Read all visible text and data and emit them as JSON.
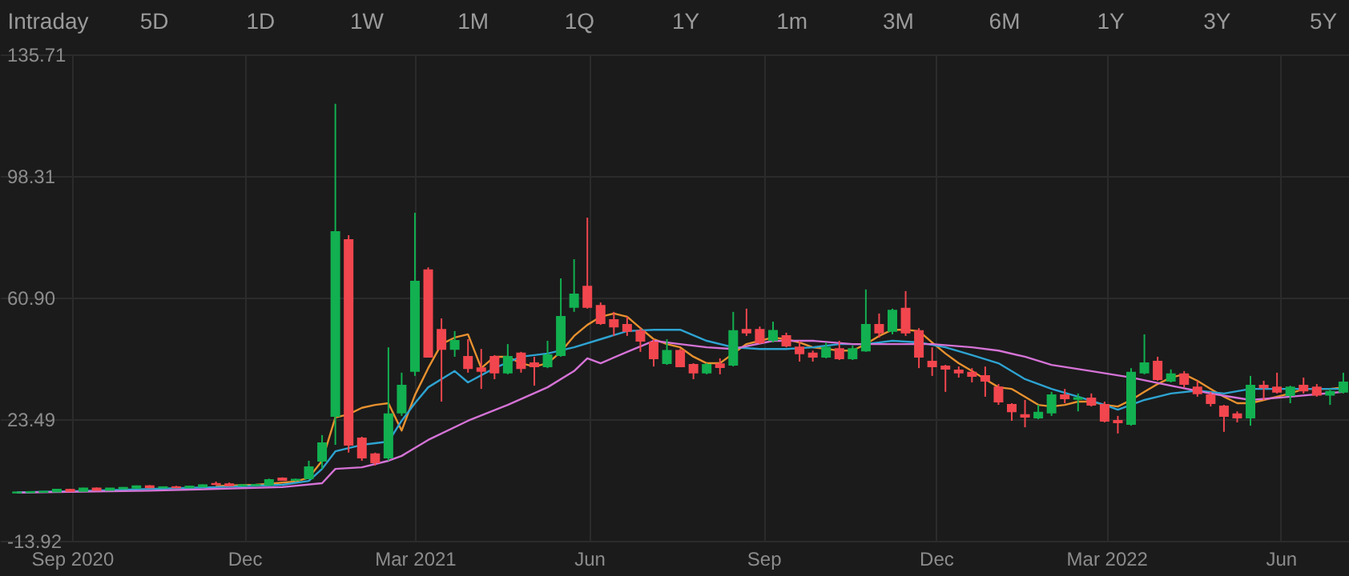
{
  "chart_data": {
    "type": "candlestick",
    "annotations": [
      "Intraday",
      "5D",
      "1D",
      "1W",
      "1M",
      "1Q",
      "1Y",
      "1m",
      "3M",
      "6M",
      "1Y",
      "3Y",
      "5Y"
    ],
    "x": [
      "2020-08-03",
      "2020-08-10",
      "2020-08-17",
      "2020-08-24",
      "2020-08-31",
      "2020-09-07",
      "2020-09-14",
      "2020-09-21",
      "2020-09-28",
      "2020-10-05",
      "2020-10-12",
      "2020-10-19",
      "2020-10-26",
      "2020-11-02",
      "2020-11-09",
      "2020-11-16",
      "2020-11-23",
      "2020-11-30",
      "2020-12-07",
      "2020-12-14",
      "2020-12-21",
      "2020-12-28",
      "2021-01-04",
      "2021-01-11",
      "2021-01-18",
      "2021-01-25",
      "2021-02-01",
      "2021-02-08",
      "2021-02-15",
      "2021-02-22",
      "2021-03-01",
      "2021-03-08",
      "2021-03-15",
      "2021-03-22",
      "2021-03-29",
      "2021-04-05",
      "2021-04-12",
      "2021-04-19",
      "2021-04-26",
      "2021-05-03",
      "2021-05-10",
      "2021-05-17",
      "2021-05-24",
      "2021-05-31",
      "2021-06-07",
      "2021-06-14",
      "2021-06-21",
      "2021-06-28",
      "2021-07-05",
      "2021-07-12",
      "2021-07-19",
      "2021-07-26",
      "2021-08-02",
      "2021-08-09",
      "2021-08-16",
      "2021-08-23",
      "2021-08-30",
      "2021-09-06",
      "2021-09-13",
      "2021-09-20",
      "2021-09-27",
      "2021-10-04",
      "2021-10-11",
      "2021-10-18",
      "2021-10-25",
      "2021-11-01",
      "2021-11-08",
      "2021-11-15",
      "2021-11-22",
      "2021-11-29",
      "2021-12-06",
      "2021-12-13",
      "2021-12-20",
      "2021-12-27",
      "2022-01-03",
      "2022-01-10",
      "2022-01-17",
      "2022-01-24",
      "2022-01-31",
      "2022-02-07",
      "2022-02-14",
      "2022-02-21",
      "2022-02-28",
      "2022-03-07",
      "2022-03-14",
      "2022-03-21",
      "2022-03-28",
      "2022-04-04",
      "2022-04-11",
      "2022-04-18",
      "2022-04-25",
      "2022-05-02",
      "2022-05-09",
      "2022-05-16",
      "2022-05-23",
      "2022-05-30",
      "2022-06-06",
      "2022-06-13",
      "2022-06-20",
      "2022-06-27",
      "2022-07-04"
    ],
    "ohlc": [
      [
        0.9,
        1.1,
        0.8,
        1.0
      ],
      [
        1.0,
        1.2,
        0.9,
        1.1
      ],
      [
        1.1,
        1.3,
        1.0,
        1.2
      ],
      [
        1.2,
        2.0,
        1.1,
        1.8
      ],
      [
        1.8,
        2.1,
        1.3,
        1.4
      ],
      [
        1.4,
        2.4,
        1.3,
        2.2
      ],
      [
        2.2,
        2.5,
        1.6,
        1.7
      ],
      [
        1.7,
        2.3,
        1.6,
        2.2
      ],
      [
        2.2,
        2.6,
        1.9,
        2.4
      ],
      [
        2.4,
        3.1,
        2.2,
        2.9
      ],
      [
        2.9,
        3.2,
        2.3,
        2.5
      ],
      [
        2.5,
        2.8,
        2.2,
        2.6
      ],
      [
        2.6,
        3.0,
        2.3,
        2.5
      ],
      [
        2.5,
        3.0,
        2.3,
        2.8
      ],
      [
        2.8,
        3.4,
        2.6,
        3.2
      ],
      [
        3.6,
        4.3,
        3.2,
        3.5
      ],
      [
        3.5,
        4.0,
        2.9,
        3.1
      ],
      [
        3.1,
        3.5,
        2.8,
        3.2
      ],
      [
        3.2,
        3.6,
        3.0,
        3.3
      ],
      [
        3.3,
        5.2,
        3.2,
        4.8
      ],
      [
        5.3,
        5.6,
        4.6,
        4.8
      ],
      [
        4.8,
        5.2,
        4.4,
        4.9
      ],
      [
        5.3,
        10.7,
        5.2,
        8.7
      ],
      [
        10.7,
        18.6,
        8.2,
        16.1
      ],
      [
        24.5,
        120.5,
        15.6,
        81.1
      ],
      [
        78.6,
        80.1,
        13.2,
        15.6
      ],
      [
        17.6,
        18.1,
        10.7,
        11.7
      ],
      [
        12.7,
        13.2,
        9.2,
        10.2
      ],
      [
        11.7,
        45.6,
        10.7,
        25.0
      ],
      [
        25.5,
        37.8,
        24.5,
        33.8
      ],
      [
        38.3,
        87.0,
        36.8,
        65.8
      ],
      [
        69.3,
        70.2,
        42.7,
        42.7
      ],
      [
        51.0,
        54.5,
        28.9,
        45.1
      ],
      [
        45.1,
        50.6,
        42.7,
        47.6
      ],
      [
        42.7,
        48.1,
        37.8,
        39.2
      ],
      [
        39.2,
        45.1,
        32.8,
        38.3
      ],
      [
        42.7,
        43.2,
        35.8,
        37.8
      ],
      [
        37.8,
        46.6,
        37.3,
        42.7
      ],
      [
        43.7,
        44.2,
        37.8,
        39.2
      ],
      [
        40.7,
        42.7,
        33.8,
        39.7
      ],
      [
        39.7,
        47.6,
        39.2,
        43.2
      ],
      [
        43.2,
        66.8,
        42.7,
        55.0
      ],
      [
        58.0,
        72.7,
        56.5,
        61.9
      ],
      [
        64.3,
        85.5,
        57.5,
        58.0
      ],
      [
        58.4,
        59.4,
        52.5,
        53.0
      ],
      [
        54.0,
        56.5,
        49.1,
        52.0
      ],
      [
        52.5,
        55.0,
        49.1,
        50.6
      ],
      [
        50.6,
        51.5,
        44.2,
        47.6
      ],
      [
        47.1,
        48.1,
        39.7,
        42.2
      ],
      [
        40.7,
        48.1,
        40.2,
        44.5
      ],
      [
        44.5,
        45.1,
        39.7,
        39.7
      ],
      [
        40.2,
        40.7,
        35.8,
        37.8
      ],
      [
        37.8,
        40.7,
        37.3,
        40.2
      ],
      [
        40.4,
        42.2,
        37.3,
        39.5
      ],
      [
        40.2,
        56.5,
        39.7,
        50.6
      ],
      [
        51.0,
        57.5,
        49.1,
        50.1
      ],
      [
        51.0,
        52.0,
        46.6,
        47.1
      ],
      [
        47.8,
        53.5,
        47.1,
        50.7
      ],
      [
        49.1,
        50.1,
        45.6,
        46.1
      ],
      [
        45.6,
        47.6,
        41.2,
        43.7
      ],
      [
        43.7,
        44.6,
        41.2,
        42.7
      ],
      [
        42.7,
        47.1,
        42.2,
        45.5
      ],
      [
        45.1,
        47.6,
        41.7,
        42.2
      ],
      [
        42.2,
        46.1,
        41.7,
        45.1
      ],
      [
        44.6,
        63.4,
        44.2,
        52.5
      ],
      [
        52.5,
        56.0,
        48.6,
        50.1
      ],
      [
        50.6,
        57.5,
        49.6,
        56.9
      ],
      [
        57.5,
        62.9,
        49.1,
        50.1
      ],
      [
        50.6,
        51.5,
        39.2,
        42.7
      ],
      [
        41.2,
        45.6,
        36.8,
        39.7
      ],
      [
        39.7,
        40.2,
        31.9,
        39.0
      ],
      [
        38.5,
        39.7,
        36.3,
        37.8
      ],
      [
        37.8,
        39.2,
        34.8,
        36.8
      ],
      [
        36.8,
        39.7,
        30.4,
        35.3
      ],
      [
        33.3,
        34.3,
        27.9,
        28.9
      ],
      [
        27.9,
        28.4,
        23.0,
        25.9
      ],
      [
        24.8,
        29.4,
        21.0,
        24.2
      ],
      [
        24.0,
        27.9,
        23.5,
        25.5
      ],
      [
        25.5,
        31.9,
        24.5,
        30.9
      ],
      [
        30.9,
        32.8,
        28.4,
        29.9
      ],
      [
        29.7,
        31.4,
        25.9,
        30.0
      ],
      [
        29.9,
        31.4,
        27.4,
        27.9
      ],
      [
        27.9,
        28.9,
        22.5,
        23.0
      ],
      [
        23.0,
        24.5,
        19.1,
        22.5
      ],
      [
        22.0,
        39.2,
        21.5,
        37.8
      ],
      [
        37.8,
        49.6,
        37.3,
        40.7
      ],
      [
        41.2,
        42.7,
        35.3,
        35.8
      ],
      [
        35.3,
        38.8,
        34.8,
        37.3
      ],
      [
        37.3,
        38.3,
        33.3,
        34.3
      ],
      [
        33.3,
        35.3,
        30.4,
        31.4
      ],
      [
        30.9,
        31.9,
        27.4,
        28.4
      ],
      [
        27.4,
        27.9,
        19.6,
        24.5
      ],
      [
        25.0,
        25.9,
        22.5,
        24.0
      ],
      [
        24.0,
        36.8,
        21.5,
        33.8
      ],
      [
        33.8,
        35.3,
        29.4,
        33.3
      ],
      [
        33.3,
        37.8,
        31.4,
        31.9
      ],
      [
        30.9,
        33.8,
        28.4,
        33.3
      ],
      [
        33.8,
        36.3,
        31.4,
        32.3
      ],
      [
        33.3,
        34.3,
        30.4,
        31.0
      ],
      [
        31.0,
        32.8,
        27.9,
        31.9
      ],
      [
        31.9,
        37.8,
        31.4,
        34.8
      ]
    ],
    "colors": [
      "#12b050",
      "#12b050",
      "#12b050",
      "#12b050",
      "#f2464e",
      "#12b050",
      "#f2464e",
      "#12b050",
      "#12b050",
      "#12b050",
      "#f2464e",
      "#12b050",
      "#f2464e",
      "#12b050",
      "#12b050",
      "#f2464e",
      "#f2464e",
      "#12b050",
      "#12b050",
      "#12b050",
      "#f2464e",
      "#12b050",
      "#12b050",
      "#12b050",
      "#12b050",
      "#f2464e",
      "#f2464e",
      "#f2464e",
      "#12b050",
      "#12b050",
      "#12b050",
      "#f2464e",
      "#f2464e",
      "#12b050",
      "#f2464e",
      "#f2464e",
      "#f2464e",
      "#12b050",
      "#f2464e",
      "#f2464e",
      "#12b050",
      "#12b050",
      "#12b050",
      "#f2464e",
      "#f2464e",
      "#f2464e",
      "#f2464e",
      "#f2464e",
      "#f2464e",
      "#12b050",
      "#f2464e",
      "#f2464e",
      "#12b050",
      "#f2464e",
      "#12b050",
      "#f2464e",
      "#f2464e",
      "#12b050",
      "#f2464e",
      "#f2464e",
      "#f2464e",
      "#12b050",
      "#f2464e",
      "#12b050",
      "#12b050",
      "#f2464e",
      "#12b050",
      "#f2464e",
      "#f2464e",
      "#f2464e",
      "#f2464e",
      "#f2464e",
      "#f2464e",
      "#f2464e",
      "#f2464e",
      "#f2464e",
      "#f2464e",
      "#12b050",
      "#12b050",
      "#f2464e",
      "#12b050",
      "#f2464e",
      "#f2464e",
      "#f2464e",
      "#12b050",
      "#12b050",
      "#f2464e",
      "#12b050",
      "#f2464e",
      "#f2464e",
      "#f2464e",
      "#f2464e",
      "#f2464e",
      "#12b050",
      "#f2464e",
      "#f2464e",
      "#12b050",
      "#f2464e",
      "#f2464e",
      "#12b050",
      "#12b050"
    ],
    "series": [
      {
        "type": "line",
        "color": "#e8912f",
        "values": [
          null,
          null,
          null,
          null,
          null,
          null,
          null,
          null,
          null,
          null,
          null,
          null,
          null,
          null,
          null,
          2.9,
          3.1,
          3.2,
          3.3,
          3.6,
          4.0,
          4.3,
          5.5,
          10.7,
          24.0,
          25.0,
          27.0,
          27.9,
          28.4,
          20.0,
          30.9,
          39.2,
          46.6,
          48.6,
          49.6,
          39.2,
          42.7,
          42.7,
          40.7,
          39.7,
          40.7,
          44.2,
          49.1,
          52.5,
          55.0,
          56.0,
          55.0,
          51.5,
          48.1,
          46.6,
          45.6,
          42.7,
          40.7,
          40.7,
          43.7,
          46.6,
          47.6,
          48.6,
          48.1,
          47.1,
          45.6,
          45.1,
          44.6,
          44.6,
          46.6,
          49.1,
          51.0,
          51.0,
          50.6,
          47.1,
          43.7,
          40.7,
          38.3,
          35.8,
          33.3,
          32.8,
          30.4,
          27.9,
          27.4,
          27.9,
          28.9,
          28.9,
          27.9,
          27.4,
          29.4,
          31.9,
          34.3,
          36.3,
          37.3,
          35.3,
          32.8,
          30.4,
          28.4,
          28.4,
          29.4,
          30.4,
          31.4,
          32.8,
          32.8,
          32.8,
          33.3
        ]
      },
      {
        "type": "line",
        "color": "#2ea3d1",
        "x": [
          "2020-08-03",
          "2020-09-07",
          "2020-10-12",
          "2020-11-16",
          "2020-12-21",
          "2021-01-04",
          "2021-01-11",
          "2021-01-18",
          "2021-02-01",
          "2021-02-15",
          "2021-02-22",
          "2021-03-01",
          "2021-03-08",
          "2021-03-22",
          "2021-03-29",
          "2021-04-12",
          "2021-04-26",
          "2021-05-10",
          "2021-05-24",
          "2021-06-07",
          "2021-06-21",
          "2021-07-05",
          "2021-07-19",
          "2021-08-02",
          "2021-08-16",
          "2021-08-30",
          "2021-09-13",
          "2021-09-27",
          "2021-10-11",
          "2021-10-25",
          "2021-11-08",
          "2021-11-22",
          "2021-12-06",
          "2021-12-20",
          "2022-01-03",
          "2022-01-17",
          "2022-01-31",
          "2022-02-14",
          "2022-02-28",
          "2022-03-07",
          "2022-03-21",
          "2022-04-04",
          "2022-04-18",
          "2022-05-02",
          "2022-05-16",
          "2022-05-30",
          "2022-06-13",
          "2022-07-04"
        ],
        "values": [
          1.0,
          1.4,
          2.0,
          2.6,
          3.3,
          4.5,
          8.2,
          13.6,
          15.6,
          16.6,
          23.0,
          28.4,
          33.3,
          38.3,
          34.8,
          39.2,
          42.7,
          43.7,
          45.6,
          48.1,
          50.6,
          51.0,
          51.0,
          47.6,
          45.6,
          45.1,
          45.1,
          45.6,
          46.6,
          46.6,
          47.6,
          47.1,
          45.6,
          43.2,
          40.7,
          35.8,
          32.8,
          30.4,
          27.9,
          26.4,
          29.4,
          31.4,
          32.3,
          31.4,
          32.8,
          32.8,
          32.8,
          32.8
        ]
      },
      {
        "type": "line",
        "color": "#d573d6",
        "x": [
          "2020-08-03",
          "2020-10-12",
          "2020-12-21",
          "2021-01-11",
          "2021-01-18",
          "2021-02-01",
          "2021-02-15",
          "2021-02-22",
          "2021-03-08",
          "2021-03-29",
          "2021-04-19",
          "2021-05-10",
          "2021-05-24",
          "2021-05-31",
          "2021-06-07",
          "2021-06-21",
          "2021-07-05",
          "2021-07-19",
          "2021-08-02",
          "2021-08-16",
          "2021-09-06",
          "2021-09-27",
          "2021-10-18",
          "2021-11-08",
          "2021-11-29",
          "2021-12-20",
          "2022-01-03",
          "2022-01-17",
          "2022-01-31",
          "2022-02-21",
          "2022-03-14",
          "2022-04-04",
          "2022-04-25",
          "2022-05-16",
          "2022-06-06",
          "2022-07-04"
        ],
        "values": [
          0.9,
          1.5,
          2.6,
          3.8,
          8.2,
          8.7,
          10.7,
          12.2,
          17.1,
          23.0,
          27.9,
          33.3,
          38.3,
          42.2,
          40.7,
          44.2,
          47.6,
          46.6,
          45.6,
          45.1,
          47.6,
          47.6,
          46.6,
          46.6,
          46.6,
          45.6,
          44.6,
          42.7,
          40.2,
          38.3,
          36.3,
          33.8,
          31.4,
          29.4,
          30.4,
          31.9
        ]
      }
    ],
    "xlim": [
      "2020-07-25",
      "2022-07-07"
    ],
    "xticks": [
      {
        "value": "2020-09-01",
        "label": "Sep 2020"
      },
      {
        "value": "2020-12-01",
        "label": "Dec"
      },
      {
        "value": "2021-03-01",
        "label": "Mar 2021"
      },
      {
        "value": "2021-06-01",
        "label": "Jun"
      },
      {
        "value": "2021-09-01",
        "label": "Sep"
      },
      {
        "value": "2021-12-01",
        "label": "Dec"
      },
      {
        "value": "2022-03-01",
        "label": "Mar 2022"
      },
      {
        "value": "2022-06-01",
        "label": "Jun"
      }
    ],
    "ylim": [
      -13.92,
      135.71
    ],
    "yticks": [
      -13.92,
      23.49,
      {
        "value": 60.9,
        "label": "60.90"
      },
      98.31,
      135.71
    ],
    "grid": true
  }
}
